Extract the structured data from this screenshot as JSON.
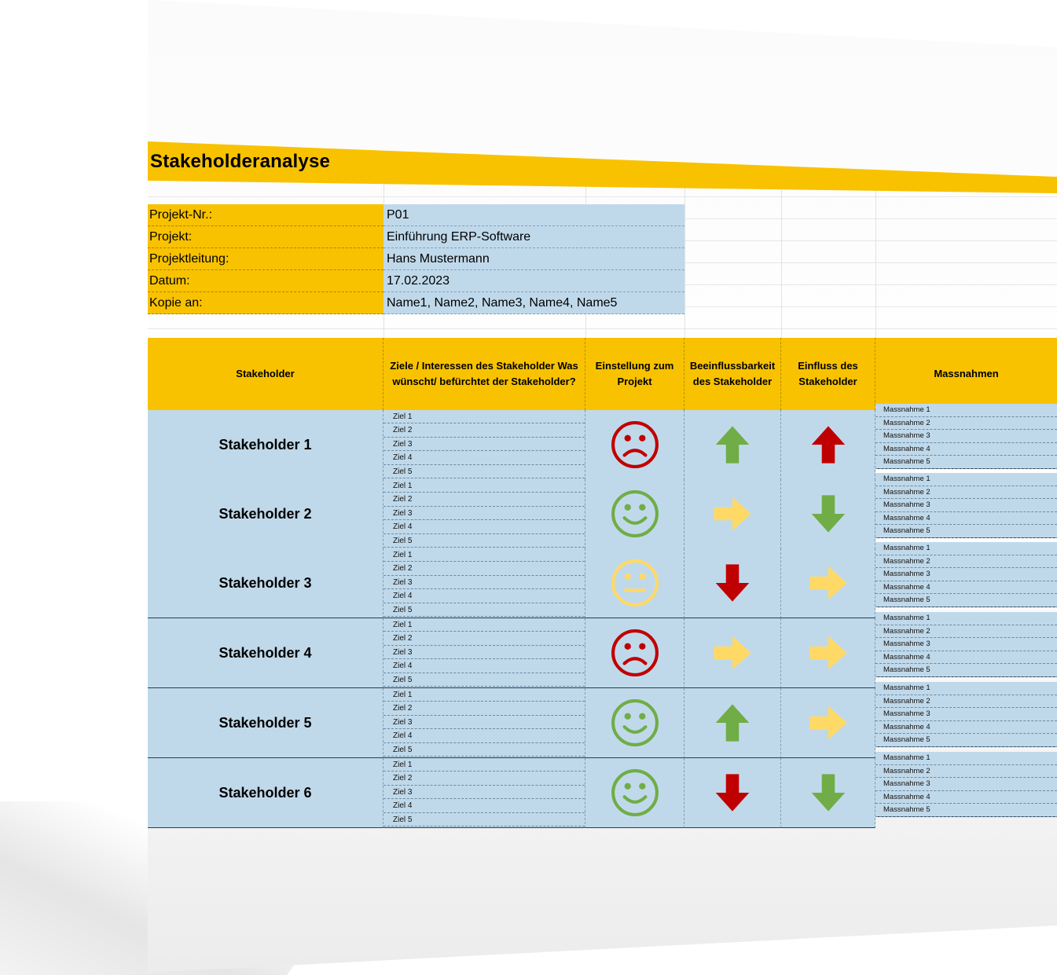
{
  "title": "Stakeholderanalyse",
  "project_info": [
    {
      "label": "Projekt-Nr.:",
      "value": "P01"
    },
    {
      "label": "Projekt:",
      "value": "Einführung ERP-Software"
    },
    {
      "label": "Projektleitung:",
      "value": "Hans Mustermann"
    },
    {
      "label": "Datum:",
      "value": "17.02.2023"
    },
    {
      "label": "Kopie an:",
      "value": "Name1, Name2, Name3, Name4, Name5"
    }
  ],
  "table_headers": {
    "stakeholder": "Stakeholder",
    "goals": "Ziele / Interessen des Stakeholder Was wünscht/ befürchtet der Stakeholder?",
    "attitude": "Einstellung zum Projekt",
    "influenceability": "Beeinflussbarkeit des Stakeholder",
    "influence": "Einfluss des Stakeholder",
    "measures": "Massnahmen"
  },
  "goal_labels": [
    "Ziel 1",
    "Ziel 2",
    "Ziel 3",
    "Ziel 4",
    "Ziel 5"
  ],
  "measure_labels": [
    "Massnahme 1",
    "Massnahme 2",
    "Massnahme 3",
    "Massnahme 4",
    "Massnahme 5"
  ],
  "colors": {
    "header": "#f8c200",
    "cell": "#c0d9ea",
    "sad": "#c00000",
    "happy": "#70ad47",
    "neutral": "#ffd966",
    "arrow_up": "#70ad47",
    "arrow_up_red": "#c00000",
    "arrow_down_red": "#c00000",
    "arrow_down_green": "#70ad47",
    "arrow_right": "#ffd966"
  },
  "stakeholders": [
    {
      "name": "Stakeholder 1",
      "attitude": "sad-face-icon",
      "influenceability": "arrow-up-green-icon",
      "influence": "arrow-up-red-icon"
    },
    {
      "name": "Stakeholder 2",
      "attitude": "happy-face-icon",
      "influenceability": "arrow-right-yellow-icon",
      "influence": "arrow-down-green-icon"
    },
    {
      "name": "Stakeholder 3",
      "attitude": "neutral-face-icon",
      "influenceability": "arrow-down-red-icon",
      "influence": "arrow-right-yellow-icon"
    },
    {
      "name": "Stakeholder 4",
      "attitude": "sad-face-icon",
      "influenceability": "arrow-right-yellow-icon",
      "influence": "arrow-right-yellow-icon"
    },
    {
      "name": "Stakeholder 5",
      "attitude": "happy-face-icon",
      "influenceability": "arrow-up-green-icon",
      "influence": "arrow-right-yellow-icon"
    },
    {
      "name": "Stakeholder 6",
      "attitude": "happy-face-icon",
      "influenceability": "arrow-down-red-icon",
      "influence": "arrow-down-green-icon"
    }
  ]
}
